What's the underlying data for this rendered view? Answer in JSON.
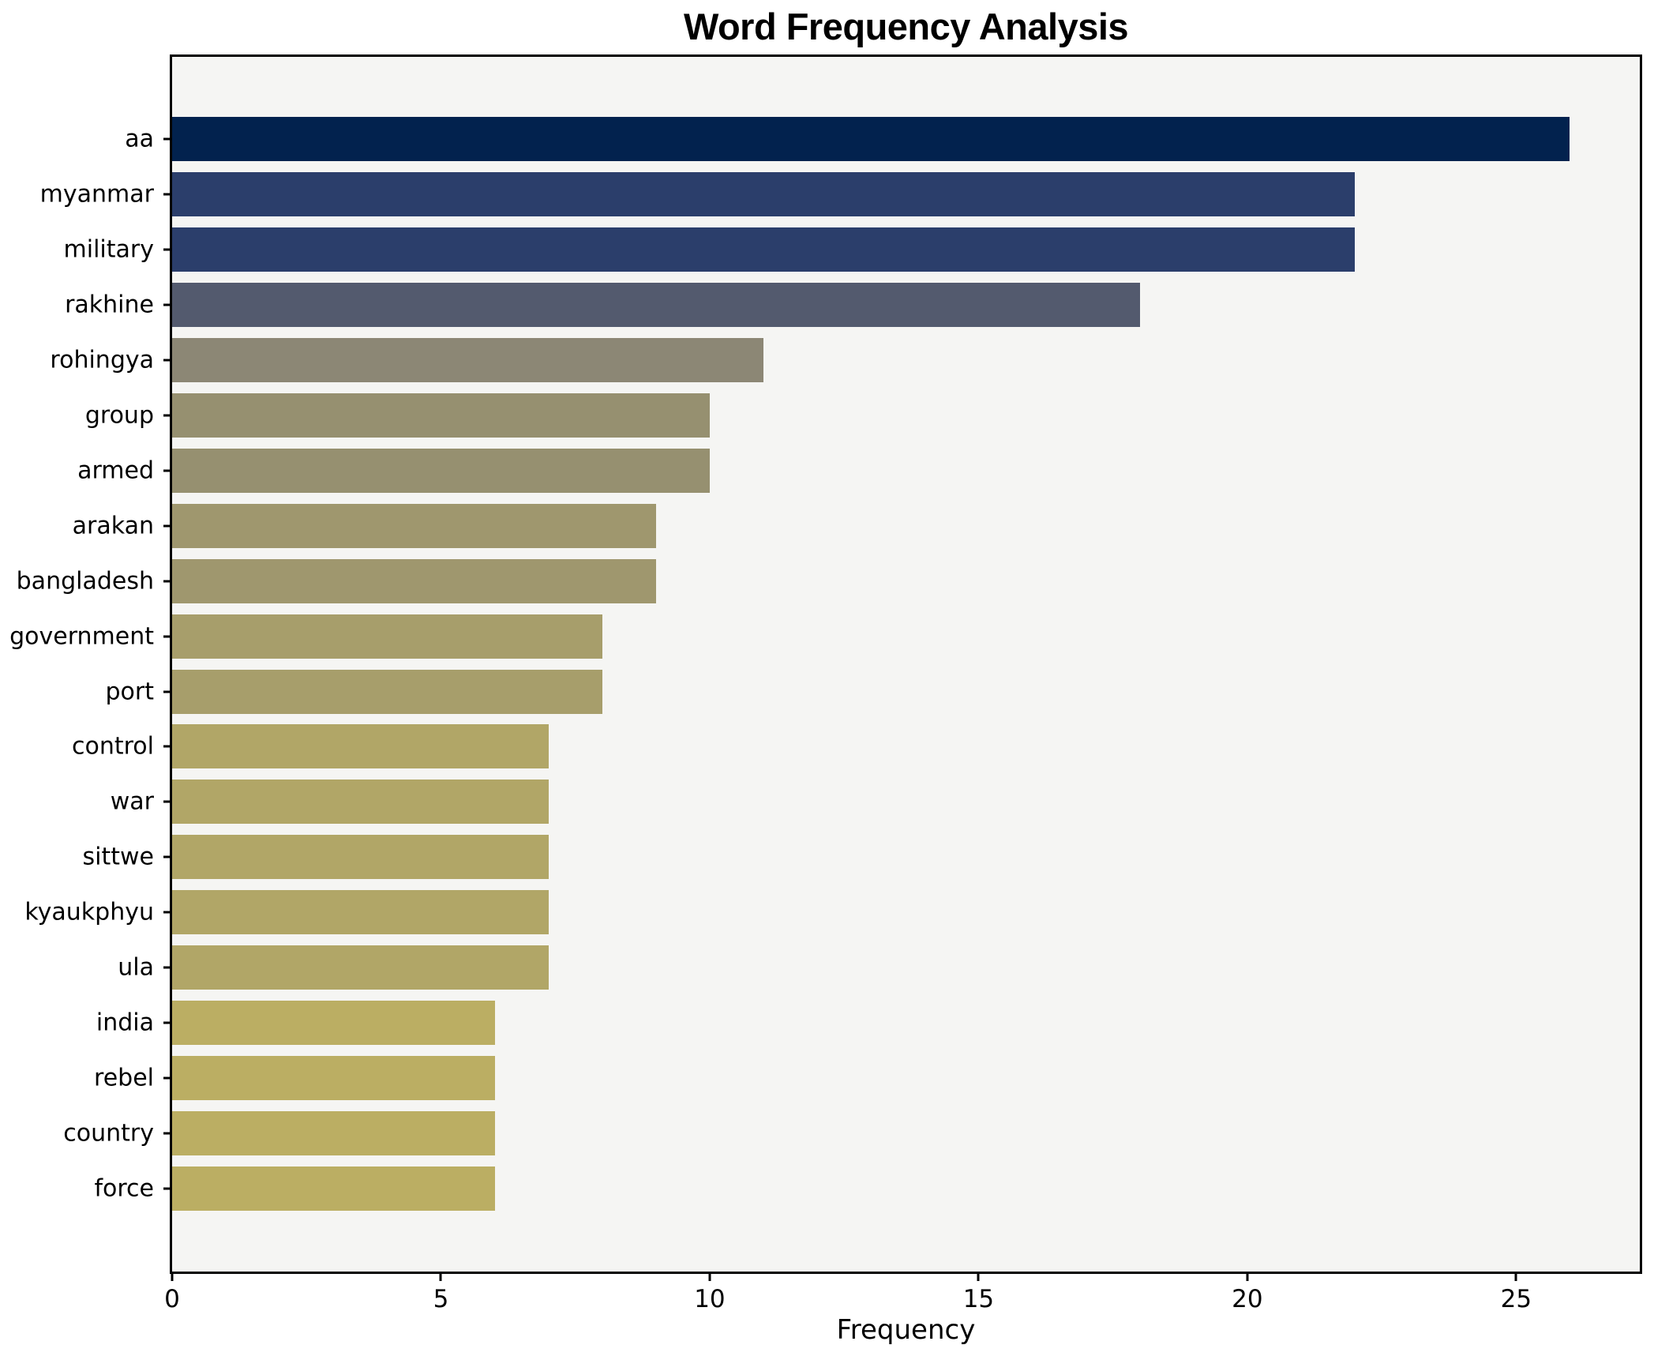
{
  "title": "Word Frequency Analysis",
  "xlabel": "Frequency",
  "chart_data": {
    "type": "bar",
    "orientation": "horizontal",
    "title": "Word Frequency Analysis",
    "xlabel": "Frequency",
    "ylabel": "",
    "categories": [
      "aa",
      "myanmar",
      "military",
      "rakhine",
      "rohingya",
      "group",
      "armed",
      "arakan",
      "bangladesh",
      "government",
      "port",
      "control",
      "war",
      "sittwe",
      "kyaukphyu",
      "ula",
      "india",
      "rebel",
      "country",
      "force"
    ],
    "values": [
      26,
      22,
      22,
      18,
      11,
      10,
      10,
      9,
      9,
      8,
      8,
      7,
      7,
      7,
      7,
      7,
      6,
      6,
      6,
      6
    ],
    "bar_colors": [
      "#02224e",
      "#2b3e6b",
      "#2b3e6b",
      "#535a6e",
      "#8c8775",
      "#969070",
      "#969070",
      "#9f976e",
      "#9f976e",
      "#a79e6b",
      "#a79e6b",
      "#b1a667",
      "#b1a667",
      "#b1a667",
      "#b1a667",
      "#b1a667",
      "#bbae63",
      "#bbae63",
      "#bbae63",
      "#bbae63"
    ],
    "xlim": [
      0,
      27.3
    ],
    "xticks": [
      0,
      5,
      10,
      15,
      20,
      25
    ],
    "grid": false,
    "legend": null,
    "plot_background": "#f5f5f3",
    "figure_background": "#ffffff",
    "spine_color": "#000000",
    "text_color": "#000000"
  }
}
